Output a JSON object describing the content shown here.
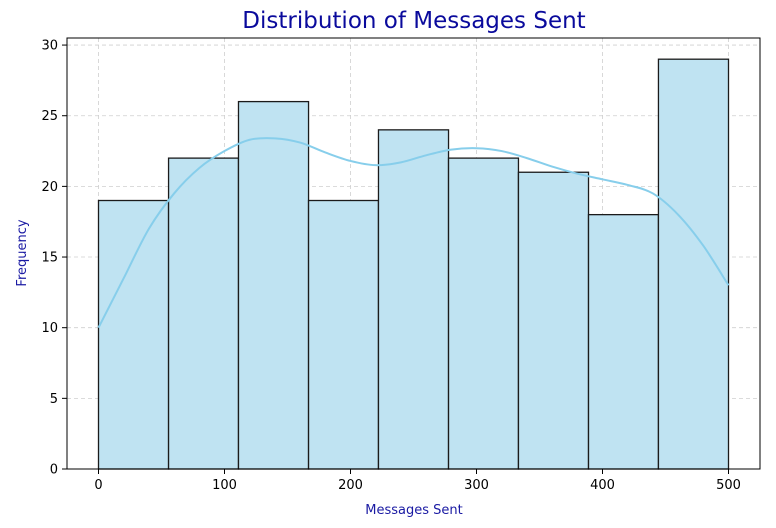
{
  "chart_data": {
    "type": "bar",
    "title": "Distribution of Messages Sent",
    "xlabel": "Messages Sent",
    "ylabel": "Frequency",
    "xlim": [
      -25,
      525
    ],
    "ylim": [
      0,
      30.5
    ],
    "xticks": [
      0,
      100,
      200,
      300,
      400,
      500
    ],
    "yticks": [
      0,
      5,
      10,
      15,
      20,
      25,
      30
    ],
    "bins": [
      {
        "x0": 0,
        "x1": 55.6,
        "count": 19
      },
      {
        "x0": 55.6,
        "x1": 111.1,
        "count": 22
      },
      {
        "x0": 111.1,
        "x1": 166.7,
        "count": 26
      },
      {
        "x0": 166.7,
        "x1": 222.2,
        "count": 19
      },
      {
        "x0": 222.2,
        "x1": 277.8,
        "count": 24
      },
      {
        "x0": 277.8,
        "x1": 333.3,
        "count": 22
      },
      {
        "x0": 333.3,
        "x1": 388.9,
        "count": 21
      },
      {
        "x0": 388.9,
        "x1": 444.4,
        "count": 18
      },
      {
        "x0": 444.4,
        "x1": 500,
        "count": 29
      }
    ],
    "kde": [
      [
        0,
        10
      ],
      [
        20,
        13.5
      ],
      [
        40,
        17
      ],
      [
        60,
        19.5
      ],
      [
        80,
        21.3
      ],
      [
        100,
        22.5
      ],
      [
        120,
        23.3
      ],
      [
        140,
        23.4
      ],
      [
        160,
        23.1
      ],
      [
        180,
        22.4
      ],
      [
        200,
        21.8
      ],
      [
        220,
        21.5
      ],
      [
        240,
        21.7
      ],
      [
        260,
        22.2
      ],
      [
        280,
        22.6
      ],
      [
        300,
        22.7
      ],
      [
        320,
        22.5
      ],
      [
        340,
        22.0
      ],
      [
        360,
        21.4
      ],
      [
        380,
        20.9
      ],
      [
        400,
        20.5
      ],
      [
        420,
        20.1
      ],
      [
        440,
        19.5
      ],
      [
        460,
        18.0
      ],
      [
        480,
        15.8
      ],
      [
        500,
        13
      ]
    ],
    "grid": true,
    "bar_color": "#bfe3f2",
    "edge_color": "#1b1b1b",
    "kde_color": "#87ceeb",
    "title_color": "#0a0a9c",
    "label_color": "#1a1aa3"
  }
}
